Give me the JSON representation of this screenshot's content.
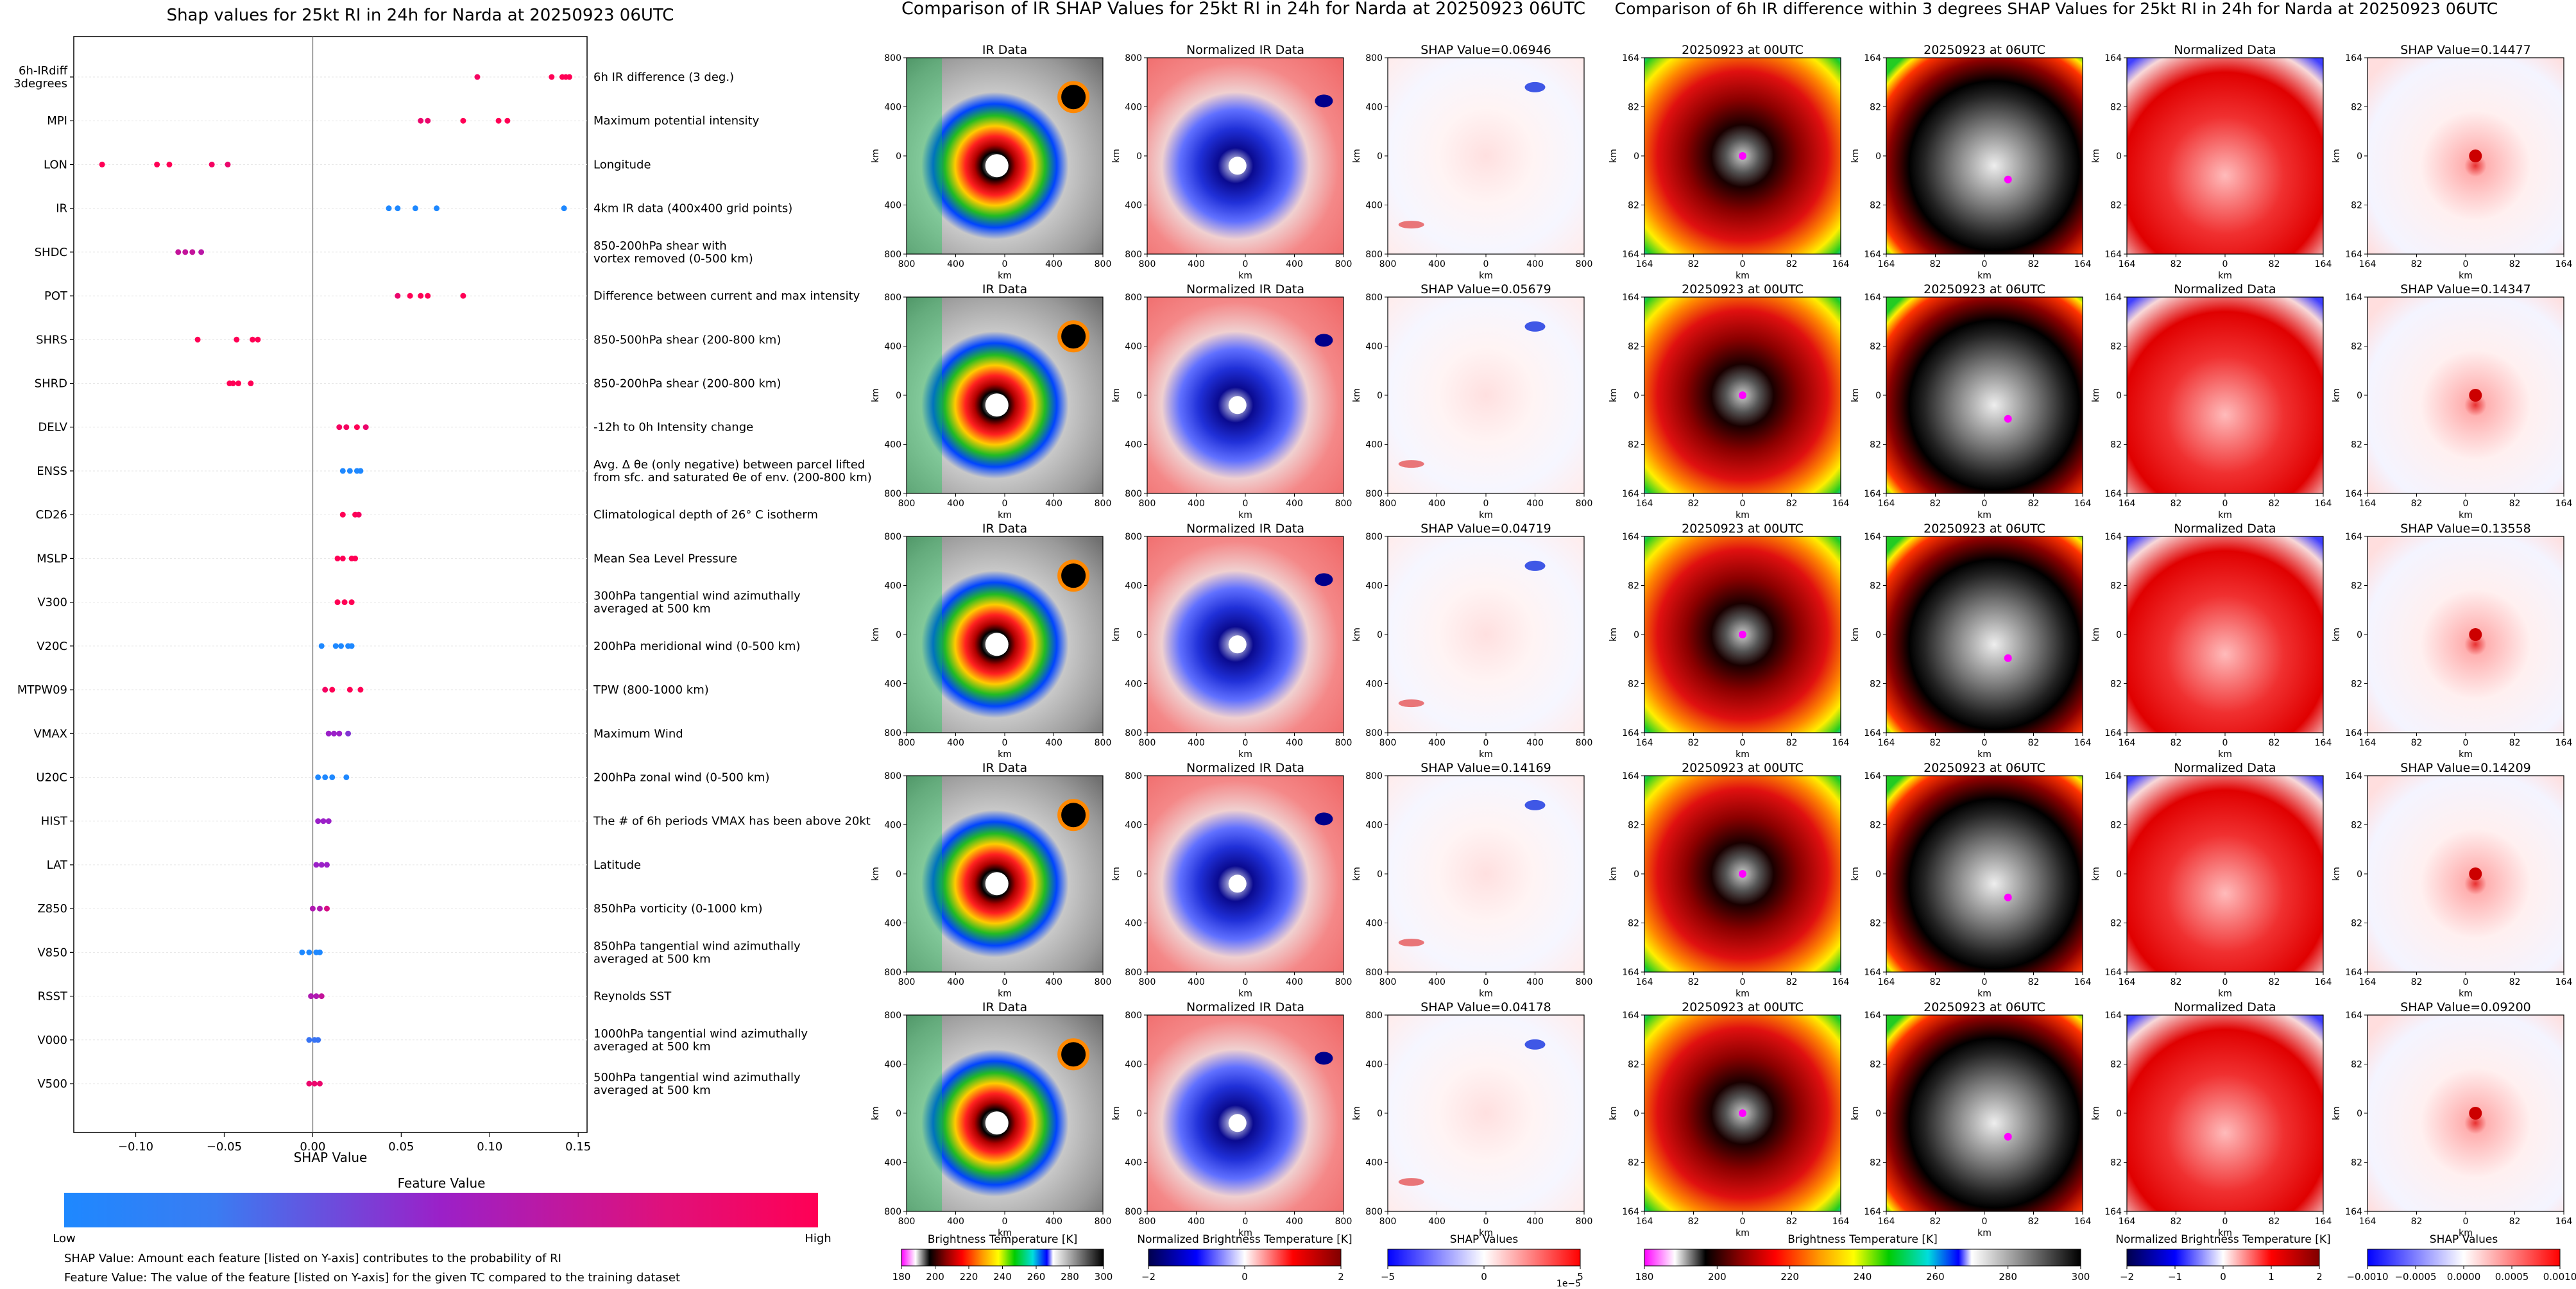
{
  "left_panel": {
    "title": "Shap values for 25kt RI in 24h for Narda at 20250923 06UTC",
    "xlabel": "SHAP Value",
    "xticks": [
      "−0.10",
      "−0.05",
      "0.00",
      "0.05",
      "0.10",
      "0.15"
    ],
    "colorbar_title": "Feature Value",
    "colorbar_low": "Low",
    "colorbar_high": "High",
    "footnote1": "SHAP Value: Amount each feature [listed on Y-axis] contributes to the probability of RI",
    "footnote2": "Feature Value: The value of the feature [listed on Y-axis] for the given TC compared to the training dataset"
  },
  "middle_panel": {
    "title": "Comparison of IR SHAP Values for 25kt RI in 24h for Narda at 20250923 06UTC",
    "col_titles": [
      "IR Data",
      "Normalized IR Data"
    ],
    "shap_titles": [
      "SHAP Value=0.06946",
      "SHAP Value=0.05679",
      "SHAP Value=0.04719",
      "SHAP Value=0.14169",
      "SHAP Value=0.04178"
    ],
    "axis_label": "km",
    "ticks": [
      "800",
      "400",
      "0",
      "400",
      "800"
    ],
    "cb1_label": "Brightness Temperature [K]",
    "cb1_ticks": [
      "180",
      "200",
      "220",
      "240",
      "260",
      "280",
      "300"
    ],
    "cb2_label": "Normalized Brightness Temperature [K]",
    "cb2_ticks": [
      "−2",
      "0",
      "2"
    ],
    "cb3_label": "SHAP Values",
    "cb3_ticks": [
      "−5",
      "0",
      "5"
    ],
    "cb3_exp": "1e−5"
  },
  "right_panel": {
    "title": "Comparison of 6h IR difference within 3 degrees SHAP Values for 25kt RI in 24h for Narda at 20250923 06UTC",
    "col_titles": [
      "20250923 at 00UTC",
      "20250923 at 06UTC",
      "Normalized Data"
    ],
    "shap_titles": [
      "SHAP Value=0.14477",
      "SHAP Value=0.14347",
      "SHAP Value=0.13558",
      "SHAP Value=0.14209",
      "SHAP Value=0.09200"
    ],
    "axis_label": "km",
    "ticks": [
      "164",
      "82",
      "0",
      "82",
      "164"
    ],
    "cb1_label": "Brightness Temperature [K]",
    "cb1_ticks": [
      "180",
      "200",
      "220",
      "240",
      "260",
      "280",
      "300"
    ],
    "cb2_label": "Normalized Brightness Temperature [K]",
    "cb2_ticks": [
      "−2",
      "−1",
      "0",
      "1",
      "2"
    ],
    "cb3_label": "SHAP Values",
    "cb3_ticks": [
      "−0.0010",
      "−0.0005",
      "0.0000",
      "0.0005",
      "0.0010"
    ]
  },
  "colors": {
    "low": "#1e88ff",
    "mid": "#9b20c8",
    "high": "#ff0055"
  },
  "chart_data": {
    "type": "scatter",
    "title": "Shap values for 25kt RI in 24h for Narda at 20250923 06UTC",
    "xlabel": "SHAP Value",
    "xlim": [
      -0.135,
      0.155
    ],
    "features": [
      {
        "name": "6h-IRdiff\n3degrees",
        "desc": "6h IR difference (3 deg.)",
        "points": [
          [
            0.093,
            0.95
          ],
          [
            0.135,
            1
          ],
          [
            0.141,
            1
          ],
          [
            0.143,
            1
          ],
          [
            0.145,
            1
          ]
        ]
      },
      {
        "name": "MPI",
        "desc": "Maximum potential intensity",
        "points": [
          [
            0.061,
            0.9
          ],
          [
            0.065,
            0.9
          ],
          [
            0.085,
            1
          ],
          [
            0.105,
            1
          ],
          [
            0.11,
            1
          ]
        ]
      },
      {
        "name": "LON",
        "desc": "Longitude",
        "points": [
          [
            -0.119,
            1
          ],
          [
            -0.088,
            1
          ],
          [
            -0.081,
            1
          ],
          [
            -0.057,
            0.95
          ],
          [
            -0.048,
            0.9
          ]
        ]
      },
      {
        "name": "IR",
        "desc": "4km IR data (400x400 grid points)",
        "points": [
          [
            0.043,
            0
          ],
          [
            0.048,
            0
          ],
          [
            0.058,
            0
          ],
          [
            0.07,
            0
          ],
          [
            0.142,
            0
          ]
        ]
      },
      {
        "name": "SHDC",
        "desc": "850-200hPa shear with\nvortex removed (0-500 km)",
        "points": [
          [
            -0.076,
            0.7
          ],
          [
            -0.072,
            0.7
          ],
          [
            -0.068,
            0.7
          ],
          [
            -0.063,
            0.65
          ]
        ]
      },
      {
        "name": "POT",
        "desc": "Difference between current and max intensity",
        "points": [
          [
            0.048,
            0.9
          ],
          [
            0.055,
            1
          ],
          [
            0.061,
            1
          ],
          [
            0.065,
            1
          ],
          [
            0.085,
            1
          ]
        ]
      },
      {
        "name": "SHRS",
        "desc": "850-500hPa shear (200-800 km)",
        "points": [
          [
            -0.065,
            1
          ],
          [
            -0.043,
            1
          ],
          [
            -0.034,
            1
          ],
          [
            -0.031,
            1
          ]
        ]
      },
      {
        "name": "SHRD",
        "desc": "850-200hPa shear (200-800 km)",
        "points": [
          [
            -0.047,
            1
          ],
          [
            -0.045,
            1
          ],
          [
            -0.042,
            1
          ],
          [
            -0.035,
            1
          ]
        ]
      },
      {
        "name": "DELV",
        "desc": "-12h to 0h Intensity change",
        "points": [
          [
            0.015,
            0.95
          ],
          [
            0.019,
            0.95
          ],
          [
            0.025,
            1
          ],
          [
            0.03,
            0.9
          ]
        ]
      },
      {
        "name": "ENSS",
        "desc": "Avg. Δ θe (only negative) between parcel lifted\nfrom sfc. and saturated θe of env. (200-800 km)",
        "points": [
          [
            0.017,
            0
          ],
          [
            0.021,
            0
          ],
          [
            0.025,
            0
          ],
          [
            0.027,
            0
          ]
        ]
      },
      {
        "name": "CD26",
        "desc": "Climatological depth of 26° C isotherm",
        "points": [
          [
            0.017,
            1
          ],
          [
            0.024,
            1
          ],
          [
            0.026,
            0.95
          ]
        ]
      },
      {
        "name": "MSLP",
        "desc": "Mean Sea Level Pressure",
        "points": [
          [
            0.014,
            1
          ],
          [
            0.017,
            1
          ],
          [
            0.022,
            1
          ],
          [
            0.024,
            1
          ]
        ]
      },
      {
        "name": "V300",
        "desc": "300hPa tangential wind azimuthally\naveraged at 500 km",
        "points": [
          [
            0.014,
            1
          ],
          [
            0.018,
            1
          ],
          [
            0.022,
            1
          ]
        ]
      },
      {
        "name": "V20C",
        "desc": "200hPa meridional wind (0-500 km)",
        "points": [
          [
            0.005,
            0
          ],
          [
            0.013,
            0
          ],
          [
            0.016,
            0
          ],
          [
            0.02,
            0
          ],
          [
            0.022,
            0
          ]
        ]
      },
      {
        "name": "MTPW09",
        "desc": "TPW (800-1000 km)",
        "points": [
          [
            0.007,
            0.95
          ],
          [
            0.011,
            1
          ],
          [
            0.021,
            1
          ],
          [
            0.027,
            1
          ]
        ]
      },
      {
        "name": "VMAX",
        "desc": "Maximum Wind",
        "points": [
          [
            0.009,
            0.5
          ],
          [
            0.012,
            0.5
          ],
          [
            0.015,
            0.5
          ],
          [
            0.02,
            0.4
          ]
        ]
      },
      {
        "name": "U20C",
        "desc": "200hPa zonal wind (0-500 km)",
        "points": [
          [
            0.003,
            0
          ],
          [
            0.007,
            0
          ],
          [
            0.011,
            0
          ],
          [
            0.019,
            0
          ]
        ]
      },
      {
        "name": "HIST",
        "desc": "The # of 6h periods VMAX has been above 20kt",
        "points": [
          [
            0.003,
            0.5
          ],
          [
            0.006,
            0.5
          ],
          [
            0.009,
            0.5
          ]
        ]
      },
      {
        "name": "LAT",
        "desc": "Latitude",
        "points": [
          [
            0.002,
            0.5
          ],
          [
            0.005,
            0.5
          ],
          [
            0.008,
            0.5
          ]
        ]
      },
      {
        "name": "Z850",
        "desc": "850hPa vorticity (0-1000 km)",
        "points": [
          [
            0.0,
            0.6
          ],
          [
            0.004,
            0.6
          ],
          [
            0.008,
            0.8
          ]
        ]
      },
      {
        "name": "V850",
        "desc": "850hPa tangential wind azimuthally\naveraged at 500 km",
        "points": [
          [
            -0.006,
            0
          ],
          [
            -0.002,
            0
          ],
          [
            0.002,
            0
          ],
          [
            0.004,
            0
          ]
        ]
      },
      {
        "name": "RSST",
        "desc": "Reynolds SST",
        "points": [
          [
            -0.001,
            0.6
          ],
          [
            0.002,
            0.6
          ],
          [
            0.005,
            0.7
          ]
        ]
      },
      {
        "name": "V000",
        "desc": "1000hPa tangential wind azimuthally\naveraged at 500 km",
        "points": [
          [
            -0.002,
            0.1
          ],
          [
            0.001,
            0.1
          ],
          [
            0.003,
            0.1
          ]
        ]
      },
      {
        "name": "V500",
        "desc": "500hPa tangential wind azimuthally\naveraged at 500 km",
        "points": [
          [
            -0.002,
            0.9
          ],
          [
            0.001,
            0.9
          ],
          [
            0.004,
            0.9
          ]
        ]
      }
    ]
  }
}
